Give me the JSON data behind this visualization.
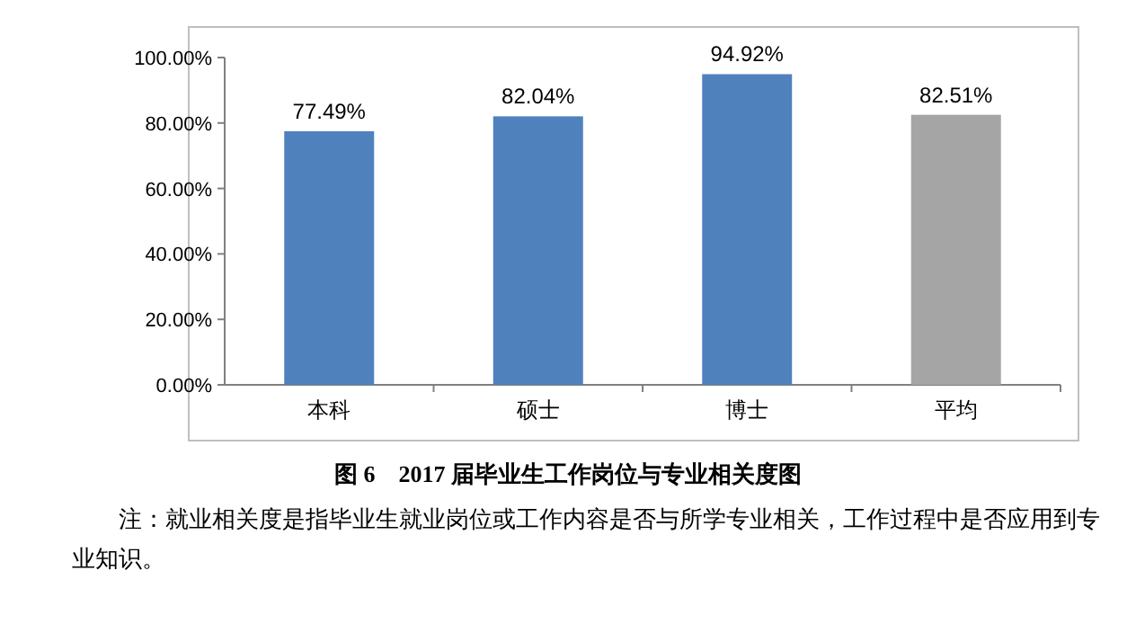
{
  "chart_data": {
    "type": "bar",
    "title": "图 6　2017 届毕业生工作岗位与专业相关度图",
    "categories": [
      "本科",
      "硕士",
      "博士",
      "平均"
    ],
    "values": [
      77.49,
      82.04,
      94.92,
      82.51
    ],
    "colors": [
      "#4f81bd",
      "#4f81bd",
      "#4f81bd",
      "#a5a5a5"
    ],
    "value_labels": [
      "77.49%",
      "82.04%",
      "94.92%",
      "82.51%"
    ],
    "ylim": [
      0,
      100
    ],
    "yticks": [
      {
        "value": 0,
        "label": "0.00%"
      },
      {
        "value": 20,
        "label": "20.00%"
      },
      {
        "value": 40,
        "label": "40.00%"
      },
      {
        "value": 60,
        "label": "60.00%"
      },
      {
        "value": 80,
        "label": "80.00%"
      },
      {
        "value": 100,
        "label": "100.00%"
      }
    ],
    "annotations": [
      "注：就业相关度是指毕业生就业岗位或工作内容是否与所学专业相关，工作过程中是否应用到专业知识。"
    ]
  }
}
